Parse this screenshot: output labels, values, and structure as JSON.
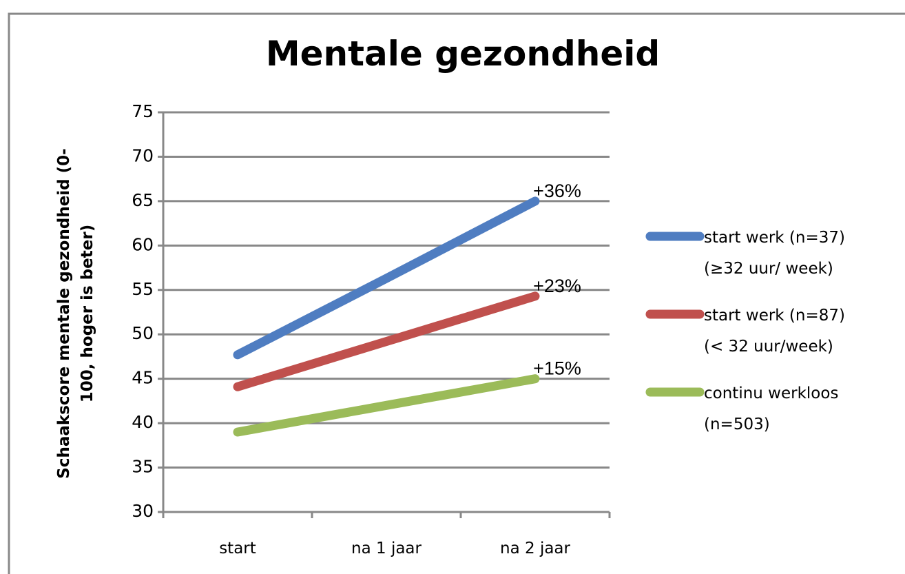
{
  "chart_data": {
    "type": "line",
    "title": "Mentale gezondheid",
    "y_label": "Schaakscore mentale gezondheid      (0-\n100, hoger is beter)",
    "categories": [
      "start",
      "na 1 jaar",
      "na 2 jaar"
    ],
    "series": [
      {
        "name": "start werk (n=37)\n(≥32 uur/ week)",
        "color": "#4f7dc1",
        "values": [
          47.7,
          56.3,
          65
        ]
      },
      {
        "name": "start  werk (n=87)\n(< 32 uur/week)",
        "color": "#c0504d",
        "values": [
          44.1,
          49.2,
          54.3
        ]
      },
      {
        "name": "continu werkloos\n(n=503)",
        "color": "#9bbb59",
        "values": [
          39,
          42,
          45
        ]
      }
    ],
    "annotations": [
      "+36%",
      "+23%",
      "+15%"
    ],
    "ylim": [
      30,
      75
    ],
    "yticks": [
      30,
      35,
      40,
      45,
      50,
      55,
      60,
      65,
      70,
      75
    ],
    "grid": true,
    "legend": "right"
  }
}
